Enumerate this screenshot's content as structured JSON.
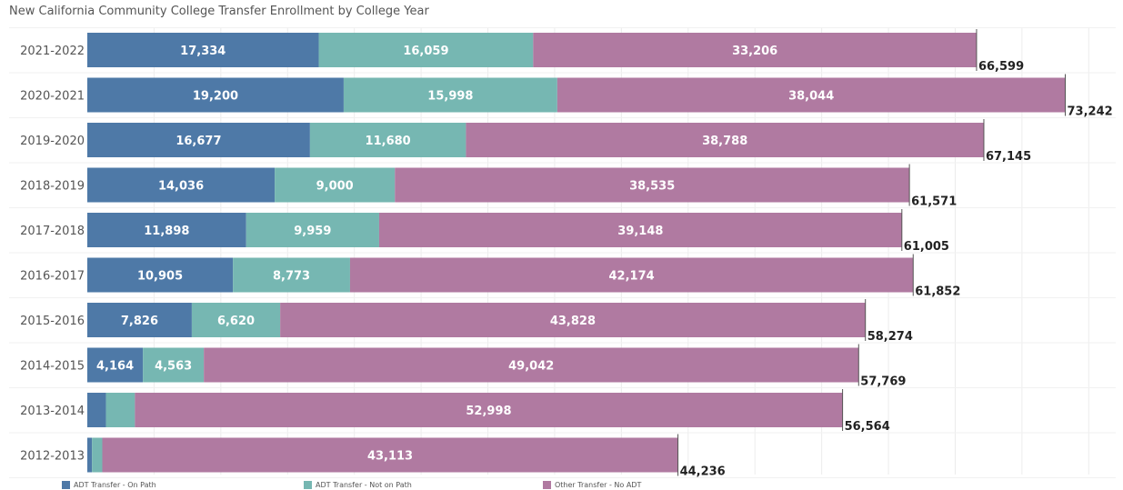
{
  "chart_data": {
    "type": "bar",
    "orientation": "horizontal",
    "stacked": true,
    "title": "New California Community College Transfer Enrollment by College Year",
    "categories": [
      "2021-2022",
      "2020-2021",
      "2019-2020",
      "2018-2019",
      "2017-2018",
      "2016-2017",
      "2015-2016",
      "2014-2015",
      "2013-2014",
      "2012-2013"
    ],
    "series": [
      {
        "name": "ADT Transfer - On Path",
        "color": "#4e79a7",
        "values": [
          17334,
          19200,
          16677,
          14036,
          11898,
          10905,
          7826,
          4164,
          1400,
          350
        ]
      },
      {
        "name": "ADT Transfer - Not on Path",
        "color": "#76b7b2",
        "values": [
          16059,
          15998,
          11680,
          9000,
          9959,
          8773,
          6620,
          4563,
          2166,
          773
        ]
      },
      {
        "name": "Other Transfer - No ADT",
        "color": "#b07aa1",
        "values": [
          33206,
          38044,
          38788,
          38535,
          39148,
          42174,
          43828,
          49042,
          52998,
          43113
        ]
      }
    ],
    "value_labels": [
      [
        "17,334",
        "16,059",
        "33,206"
      ],
      [
        "19,200",
        "15,998",
        "38,044"
      ],
      [
        "16,677",
        "11,680",
        "38,788"
      ],
      [
        "14,036",
        "9,000",
        "38,535"
      ],
      [
        "11,898",
        "9,959",
        "39,148"
      ],
      [
        "10,905",
        "8,773",
        "42,174"
      ],
      [
        "7,826",
        "6,620",
        "43,828"
      ],
      [
        "4,164",
        "4,563",
        "49,042"
      ],
      [
        "",
        "",
        "52,998"
      ],
      [
        "",
        "",
        "43,113"
      ]
    ],
    "totals": [
      66599,
      73242,
      67145,
      61571,
      61005,
      61852,
      58274,
      57769,
      56564,
      44236
    ],
    "total_labels": [
      "66,599",
      "73,242",
      "67,145",
      "61,571",
      "61,005",
      "61,852",
      "58,274",
      "57,769",
      "56,564",
      "44,236"
    ],
    "xlim": [
      0,
      76000
    ],
    "grid": true,
    "legend_position": "bottom"
  }
}
